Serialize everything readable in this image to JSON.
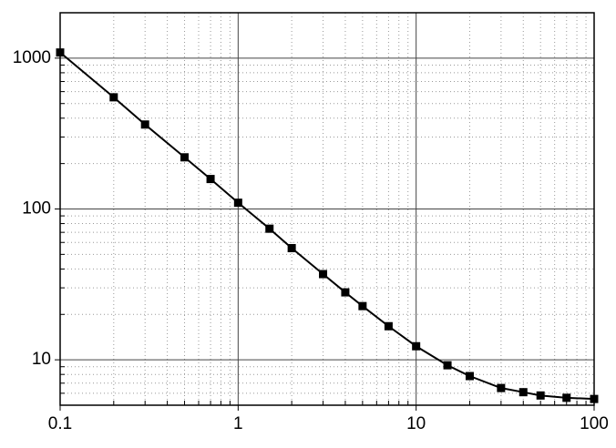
{
  "chart_data": {
    "type": "line",
    "log_x": true,
    "log_y": true,
    "grid": true,
    "minor_grid": true,
    "marker": "square",
    "x": [
      0.1,
      0.2,
      0.3,
      0.5,
      0.7,
      1,
      1.5,
      2,
      3,
      4,
      5,
      7,
      10,
      15,
      20,
      30,
      40,
      50,
      70,
      100
    ],
    "series": [
      {
        "color": "#000000",
        "values": [
          1090,
          550,
          363,
          220,
          158,
          110,
          74,
          55,
          37,
          28,
          22.7,
          16.7,
          12.3,
          9.2,
          7.8,
          6.5,
          6.1,
          5.8,
          5.6,
          5.5
        ]
      }
    ],
    "xlim": [
      0.1,
      100
    ],
    "xticks": [
      0.1,
      1,
      10,
      100
    ],
    "ylim": [
      5,
      2000
    ],
    "yticks": [
      10,
      100,
      1000
    ]
  }
}
